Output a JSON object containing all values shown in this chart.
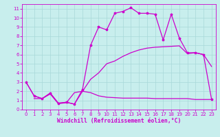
{
  "xlabel": "Windchill (Refroidissement éolien,°C)",
  "bg_color": "#c8eeed",
  "grid_color": "#a8d8d8",
  "line_color": "#cc00cc",
  "xlim": [
    -0.5,
    23.5
  ],
  "ylim": [
    0,
    11.5
  ],
  "xticks": [
    0,
    1,
    2,
    3,
    4,
    5,
    6,
    7,
    8,
    9,
    10,
    11,
    12,
    13,
    14,
    15,
    16,
    17,
    18,
    19,
    20,
    21,
    22,
    23
  ],
  "yticks": [
    0,
    1,
    2,
    3,
    4,
    5,
    6,
    7,
    8,
    9,
    10,
    11
  ],
  "line1_x": [
    0,
    1,
    2,
    3,
    4,
    5,
    6,
    7,
    8,
    9,
    10,
    11,
    12,
    13,
    14,
    15,
    16,
    17,
    18,
    19,
    20,
    21,
    22,
    23
  ],
  "line1_y": [
    3.0,
    1.5,
    1.2,
    1.8,
    0.7,
    0.8,
    0.6,
    2.0,
    3.3,
    4.0,
    5.0,
    5.3,
    5.8,
    6.2,
    6.5,
    6.7,
    6.8,
    6.85,
    6.9,
    6.95,
    6.1,
    6.2,
    6.0,
    4.7
  ],
  "line2_x": [
    0,
    1,
    2,
    3,
    4,
    5,
    6,
    7,
    8,
    9,
    10,
    11,
    12,
    13,
    14,
    15,
    16,
    17,
    18,
    19,
    20,
    21,
    22,
    23
  ],
  "line2_y": [
    3.0,
    1.5,
    1.2,
    1.8,
    0.7,
    0.8,
    0.6,
    2.2,
    7.0,
    9.0,
    8.7,
    10.5,
    10.7,
    11.1,
    10.5,
    10.5,
    10.4,
    7.6,
    10.4,
    7.8,
    6.2,
    6.2,
    6.0,
    1.1
  ],
  "line3_x": [
    1,
    2,
    3,
    4,
    5,
    6,
    7,
    8,
    9,
    10,
    11,
    12,
    13,
    14,
    15,
    16,
    17,
    18,
    19,
    20,
    21,
    22,
    23
  ],
  "line3_y": [
    1.2,
    1.2,
    1.7,
    0.65,
    0.75,
    1.85,
    2.0,
    1.85,
    1.5,
    1.35,
    1.3,
    1.25,
    1.25,
    1.25,
    1.25,
    1.2,
    1.2,
    1.2,
    1.2,
    1.2,
    1.1,
    1.1,
    1.1
  ],
  "marker_size": 2.5,
  "line_width": 0.9,
  "tick_fontsize": 5.0,
  "label_fontsize": 5.8
}
